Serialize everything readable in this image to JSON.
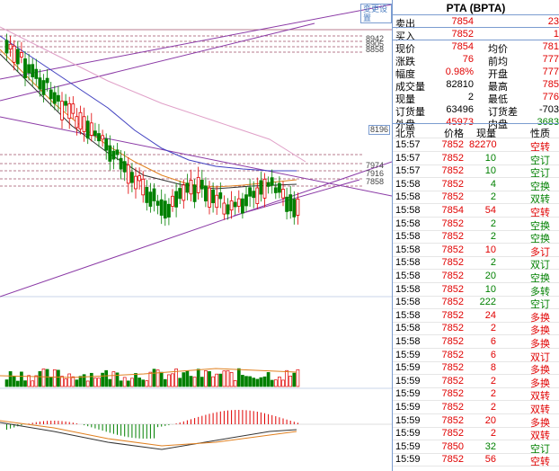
{
  "title": "PTA (BPTA)",
  "corner_label": "变更设置",
  "price_tags": {
    "p1": "8942",
    "p2": "8905",
    "p3": "8858",
    "p4": "8196",
    "p5": "7974",
    "p6": "7916",
    "p7": "7858"
  },
  "quote": {
    "rows": [
      {
        "l": "卖出",
        "v": "7854",
        "vc": "red",
        "l2": "",
        "v2": "23",
        "v2c": "red"
      },
      {
        "l": "买入",
        "v": "7852",
        "vc": "red",
        "l2": "",
        "v2": "1",
        "v2c": "red"
      },
      {
        "l": "现价",
        "v": "7854",
        "vc": "red",
        "l2": "均价",
        "v2": "781",
        "v2c": "red"
      },
      {
        "l": "涨跌",
        "v": "76",
        "vc": "red",
        "l2": "前均",
        "v2": "777",
        "v2c": "red"
      },
      {
        "l": "幅度",
        "v": "0.98%",
        "vc": "red",
        "l2": "开盘",
        "v2": "777",
        "v2c": "red"
      },
      {
        "l": "成交量",
        "v": "82810",
        "vc": "black",
        "l2": "最高",
        "v2": "785",
        "v2c": "red"
      },
      {
        "l": "现量",
        "v": "2",
        "vc": "black",
        "l2": "最低",
        "v2": "776",
        "v2c": "red"
      },
      {
        "l": "订货量",
        "v": "63496",
        "vc": "black",
        "l2": "订货差",
        "v2": "-703",
        "v2c": "black"
      },
      {
        "l": "外盘",
        "v": "45973",
        "vc": "red",
        "l2": "内盘",
        "v2": "3683",
        "v2c": "grn"
      }
    ]
  },
  "trades_header": {
    "time": "北京",
    "price": "价格",
    "vol": "现量",
    "nature": "性质"
  },
  "trades": [
    {
      "t": "15:57",
      "p": "7852",
      "v": "82270",
      "pc": "red",
      "vc": "red",
      "n": "空转",
      "nc": "red"
    },
    {
      "t": "15:57",
      "p": "7852",
      "v": "10",
      "pc": "red",
      "vc": "grn",
      "n": "空订",
      "nc": "grn"
    },
    {
      "t": "15:57",
      "p": "7852",
      "v": "10",
      "pc": "red",
      "vc": "grn",
      "n": "空订",
      "nc": "grn"
    },
    {
      "t": "15:58",
      "p": "7852",
      "v": "4",
      "pc": "red",
      "vc": "grn",
      "n": "空换",
      "nc": "grn"
    },
    {
      "t": "15:58",
      "p": "7852",
      "v": "2",
      "pc": "red",
      "vc": "grn",
      "n": "双转",
      "nc": "grn"
    },
    {
      "t": "15:58",
      "p": "7854",
      "v": "54",
      "pc": "red",
      "vc": "red",
      "n": "空转",
      "nc": "red"
    },
    {
      "t": "15:58",
      "p": "7852",
      "v": "2",
      "pc": "red",
      "vc": "grn",
      "n": "空换",
      "nc": "grn"
    },
    {
      "t": "15:58",
      "p": "7852",
      "v": "2",
      "pc": "red",
      "vc": "grn",
      "n": "空换",
      "nc": "grn"
    },
    {
      "t": "15:58",
      "p": "7852",
      "v": "10",
      "pc": "red",
      "vc": "red",
      "n": "多订",
      "nc": "red"
    },
    {
      "t": "15:58",
      "p": "7852",
      "v": "2",
      "pc": "red",
      "vc": "grn",
      "n": "双订",
      "nc": "grn"
    },
    {
      "t": "15:58",
      "p": "7852",
      "v": "20",
      "pc": "red",
      "vc": "grn",
      "n": "空换",
      "nc": "grn"
    },
    {
      "t": "15:58",
      "p": "7852",
      "v": "10",
      "pc": "red",
      "vc": "grn",
      "n": "多转",
      "nc": "grn"
    },
    {
      "t": "15:58",
      "p": "7852",
      "v": "222",
      "pc": "red",
      "vc": "grn",
      "n": "空订",
      "nc": "grn"
    },
    {
      "t": "15:58",
      "p": "7852",
      "v": "24",
      "pc": "red",
      "vc": "red",
      "n": "多换",
      "nc": "red"
    },
    {
      "t": "15:58",
      "p": "7852",
      "v": "2",
      "pc": "red",
      "vc": "red",
      "n": "多换",
      "nc": "red"
    },
    {
      "t": "15:58",
      "p": "7852",
      "v": "6",
      "pc": "red",
      "vc": "red",
      "n": "多换",
      "nc": "red"
    },
    {
      "t": "15:59",
      "p": "7852",
      "v": "6",
      "pc": "red",
      "vc": "red",
      "n": "双订",
      "nc": "red"
    },
    {
      "t": "15:59",
      "p": "7852",
      "v": "8",
      "pc": "red",
      "vc": "red",
      "n": "多换",
      "nc": "red"
    },
    {
      "t": "15:59",
      "p": "7852",
      "v": "2",
      "pc": "red",
      "vc": "red",
      "n": "多换",
      "nc": "red"
    },
    {
      "t": "15:59",
      "p": "7852",
      "v": "2",
      "pc": "red",
      "vc": "red",
      "n": "双转",
      "nc": "red"
    },
    {
      "t": "15:59",
      "p": "7852",
      "v": "2",
      "pc": "red",
      "vc": "red",
      "n": "双转",
      "nc": "red"
    },
    {
      "t": "15:59",
      "p": "7852",
      "v": "20",
      "pc": "red",
      "vc": "red",
      "n": "多换",
      "nc": "red"
    },
    {
      "t": "15:59",
      "p": "7852",
      "v": "2",
      "pc": "red",
      "vc": "red",
      "n": "双转",
      "nc": "red"
    },
    {
      "t": "15:59",
      "p": "7850",
      "v": "32",
      "pc": "red",
      "vc": "grn",
      "n": "空订",
      "nc": "grn"
    },
    {
      "t": "15:59",
      "p": "7852",
      "v": "56",
      "pc": "red",
      "vc": "red",
      "n": "空转",
      "nc": "red"
    }
  ],
  "colors": {
    "up": "#e00000",
    "down": "#008000",
    "panel_line": "#7b9cd0"
  }
}
